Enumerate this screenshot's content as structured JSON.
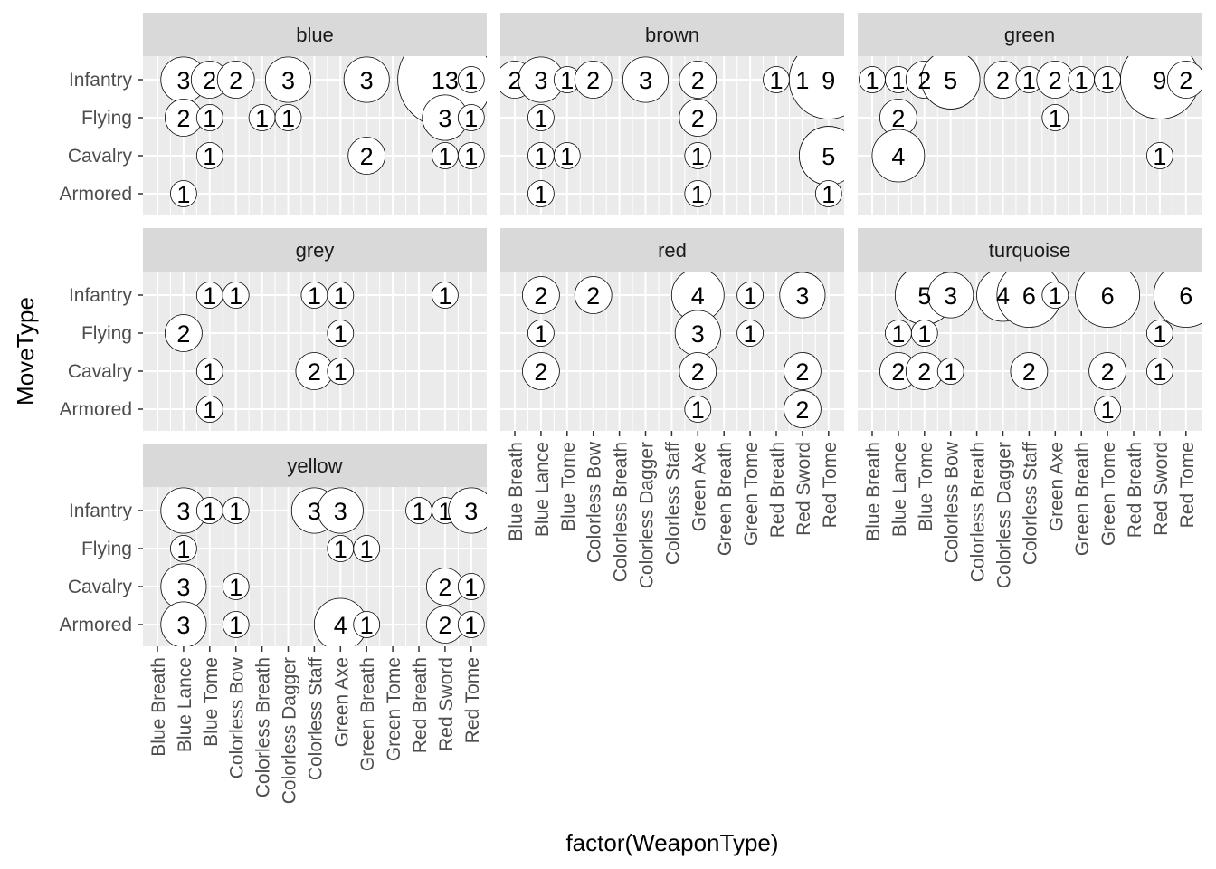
{
  "chart_data": {
    "type": "scatter",
    "subtype": "faceted-bubble",
    "xlabel": "factor(WeaponType)",
    "ylabel": "MoveType",
    "categories": [
      "Blue Breath",
      "Blue Lance",
      "Blue Tome",
      "Colorless Bow",
      "Colorless Breath",
      "Colorless Dagger",
      "Colorless Staff",
      "Green Axe",
      "Green Breath",
      "Green Tome",
      "Red Breath",
      "Red Sword",
      "Red Tome"
    ],
    "y_categories": [
      "Infantry",
      "Flying",
      "Cavalry",
      "Armored"
    ],
    "legend": "none",
    "grid": true,
    "facets": [
      {
        "name": "blue",
        "points": [
          {
            "x": "Blue Lance",
            "y": "Infantry",
            "value": 3,
            "label": "3"
          },
          {
            "x": "Blue Tome",
            "y": "Infantry",
            "value": 2,
            "label": "2"
          },
          {
            "x": "Colorless Bow",
            "y": "Infantry",
            "value": 2,
            "label": "2"
          },
          {
            "x": "Colorless Dagger",
            "y": "Infantry",
            "value": 3,
            "label": "3"
          },
          {
            "x": "Green Breath",
            "y": "Infantry",
            "value": 3,
            "label": "3"
          },
          {
            "x": "Red Sword",
            "y": "Infantry",
            "value": 13,
            "label": "13"
          },
          {
            "x": "Red Tome",
            "y": "Infantry",
            "value": 1,
            "label": "1"
          },
          {
            "x": "Blue Lance",
            "y": "Flying",
            "value": 2,
            "label": "2"
          },
          {
            "x": "Blue Tome",
            "y": "Flying",
            "value": 1,
            "label": "1"
          },
          {
            "x": "Colorless Breath",
            "y": "Flying",
            "value": 1,
            "label": "1"
          },
          {
            "x": "Colorless Dagger",
            "y": "Flying",
            "value": 1,
            "label": "1"
          },
          {
            "x": "Red Sword",
            "y": "Flying",
            "value": 3,
            "label": "3"
          },
          {
            "x": "Red Tome",
            "y": "Flying",
            "value": 1,
            "label": "1"
          },
          {
            "x": "Blue Tome",
            "y": "Cavalry",
            "value": 1,
            "label": "1"
          },
          {
            "x": "Green Breath",
            "y": "Cavalry",
            "value": 2,
            "label": "2"
          },
          {
            "x": "Red Sword",
            "y": "Cavalry",
            "value": 1,
            "label": "1"
          },
          {
            "x": "Red Tome",
            "y": "Cavalry",
            "value": 1,
            "label": "1"
          },
          {
            "x": "Blue Lance",
            "y": "Armored",
            "value": 1,
            "label": "1"
          }
        ]
      },
      {
        "name": "brown",
        "points": [
          {
            "x": "Blue Breath",
            "y": "Infantry",
            "value": 2,
            "label": "2"
          },
          {
            "x": "Blue Lance",
            "y": "Infantry",
            "value": 3,
            "label": "3"
          },
          {
            "x": "Blue Tome",
            "y": "Infantry",
            "value": 1,
            "label": "1"
          },
          {
            "x": "Colorless Bow",
            "y": "Infantry",
            "value": 2,
            "label": "2"
          },
          {
            "x": "Colorless Dagger",
            "y": "Infantry",
            "value": 3,
            "label": "3"
          },
          {
            "x": "Green Axe",
            "y": "Infantry",
            "value": 2,
            "label": "2"
          },
          {
            "x": "Red Breath",
            "y": "Infantry",
            "value": 1,
            "label": "1"
          },
          {
            "x": "Red Sword",
            "y": "Infantry",
            "value": 1,
            "label": "1"
          },
          {
            "x": "Red Tome",
            "y": "Infantry",
            "value": 9,
            "label": "9"
          },
          {
            "x": "Blue Lance",
            "y": "Flying",
            "value": 1,
            "label": "1"
          },
          {
            "x": "Green Axe",
            "y": "Flying",
            "value": 2,
            "label": "2"
          },
          {
            "x": "Blue Lance",
            "y": "Cavalry",
            "value": 1,
            "label": "1"
          },
          {
            "x": "Blue Tome",
            "y": "Cavalry",
            "value": 1,
            "label": "1"
          },
          {
            "x": "Green Axe",
            "y": "Cavalry",
            "value": 1,
            "label": "1"
          },
          {
            "x": "Red Tome",
            "y": "Cavalry",
            "value": 5,
            "label": "5"
          },
          {
            "x": "Blue Lance",
            "y": "Armored",
            "value": 1,
            "label": "1"
          },
          {
            "x": "Green Axe",
            "y": "Armored",
            "value": 1,
            "label": "1"
          },
          {
            "x": "Red Tome",
            "y": "Armored",
            "value": 1,
            "label": "1"
          }
        ]
      },
      {
        "name": "green",
        "points": [
          {
            "x": "Blue Breath",
            "y": "Infantry",
            "value": 1,
            "label": "1"
          },
          {
            "x": "Blue Lance",
            "y": "Infantry",
            "value": 1,
            "label": "1"
          },
          {
            "x": "Blue Tome",
            "y": "Infantry",
            "value": 2,
            "label": "2"
          },
          {
            "x": "Colorless Bow",
            "y": "Infantry",
            "value": 5,
            "label": "5"
          },
          {
            "x": "Colorless Dagger",
            "y": "Infantry",
            "value": 2,
            "label": "2"
          },
          {
            "x": "Colorless Staff",
            "y": "Infantry",
            "value": 1,
            "label": "1"
          },
          {
            "x": "Green Axe",
            "y": "Infantry",
            "value": 2,
            "label": "2"
          },
          {
            "x": "Green Breath",
            "y": "Infantry",
            "value": 1,
            "label": "1"
          },
          {
            "x": "Green Tome",
            "y": "Infantry",
            "value": 1,
            "label": "1"
          },
          {
            "x": "Red Sword",
            "y": "Infantry",
            "value": 9,
            "label": "9"
          },
          {
            "x": "Red Tome",
            "y": "Infantry",
            "value": 2,
            "label": "2"
          },
          {
            "x": "Blue Lance",
            "y": "Flying",
            "value": 2,
            "label": "2"
          },
          {
            "x": "Green Axe",
            "y": "Flying",
            "value": 1,
            "label": "1"
          },
          {
            "x": "Blue Lance",
            "y": "Cavalry",
            "value": 4,
            "label": "4"
          },
          {
            "x": "Red Sword",
            "y": "Cavalry",
            "value": 1,
            "label": "1"
          }
        ]
      },
      {
        "name": "grey",
        "points": [
          {
            "x": "Blue Tome",
            "y": "Infantry",
            "value": 1,
            "label": "1"
          },
          {
            "x": "Colorless Bow",
            "y": "Infantry",
            "value": 1,
            "label": "1"
          },
          {
            "x": "Colorless Staff",
            "y": "Infantry",
            "value": 1,
            "label": "1"
          },
          {
            "x": "Green Axe",
            "y": "Infantry",
            "value": 1,
            "label": "1"
          },
          {
            "x": "Red Sword",
            "y": "Infantry",
            "value": 1,
            "label": "1"
          },
          {
            "x": "Blue Lance",
            "y": "Flying",
            "value": 2,
            "label": "2"
          },
          {
            "x": "Green Axe",
            "y": "Flying",
            "value": 1,
            "label": "1"
          },
          {
            "x": "Blue Tome",
            "y": "Cavalry",
            "value": 1,
            "label": "1"
          },
          {
            "x": "Colorless Staff",
            "y": "Cavalry",
            "value": 2,
            "label": "2"
          },
          {
            "x": "Green Axe",
            "y": "Cavalry",
            "value": 1,
            "label": "1"
          },
          {
            "x": "Blue Tome",
            "y": "Armored",
            "value": 1,
            "label": "1"
          }
        ]
      },
      {
        "name": "red",
        "points": [
          {
            "x": "Blue Lance",
            "y": "Infantry",
            "value": 2,
            "label": "2"
          },
          {
            "x": "Colorless Bow",
            "y": "Infantry",
            "value": 2,
            "label": "2"
          },
          {
            "x": "Green Axe",
            "y": "Infantry",
            "value": 4,
            "label": "4"
          },
          {
            "x": "Green Tome",
            "y": "Infantry",
            "value": 1,
            "label": "1"
          },
          {
            "x": "Red Sword",
            "y": "Infantry",
            "value": 3,
            "label": "3"
          },
          {
            "x": "Blue Lance",
            "y": "Flying",
            "value": 1,
            "label": "1"
          },
          {
            "x": "Green Axe",
            "y": "Flying",
            "value": 3,
            "label": "3"
          },
          {
            "x": "Green Tome",
            "y": "Flying",
            "value": 1,
            "label": "1"
          },
          {
            "x": "Blue Lance",
            "y": "Cavalry",
            "value": 2,
            "label": "2"
          },
          {
            "x": "Green Axe",
            "y": "Cavalry",
            "value": 2,
            "label": "2"
          },
          {
            "x": "Red Sword",
            "y": "Cavalry",
            "value": 2,
            "label": "2"
          },
          {
            "x": "Green Axe",
            "y": "Armored",
            "value": 1,
            "label": "1"
          },
          {
            "x": "Red Sword",
            "y": "Armored",
            "value": 2,
            "label": "2"
          }
        ]
      },
      {
        "name": "turquoise",
        "points": [
          {
            "x": "Blue Tome",
            "y": "Infantry",
            "value": 5,
            "label": "5"
          },
          {
            "x": "Colorless Bow",
            "y": "Infantry",
            "value": 3,
            "label": "3"
          },
          {
            "x": "Colorless Dagger",
            "y": "Infantry",
            "value": 4,
            "label": "4"
          },
          {
            "x": "Colorless Staff",
            "y": "Infantry",
            "value": 6,
            "label": "6"
          },
          {
            "x": "Green Axe",
            "y": "Infantry",
            "value": 1,
            "label": "1"
          },
          {
            "x": "Green Tome",
            "y": "Infantry",
            "value": 6,
            "label": "6"
          },
          {
            "x": "Red Tome",
            "y": "Infantry",
            "value": 6,
            "label": "6"
          },
          {
            "x": "Blue Lance",
            "y": "Flying",
            "value": 1,
            "label": "1"
          },
          {
            "x": "Blue Tome",
            "y": "Flying",
            "value": 1,
            "label": "1"
          },
          {
            "x": "Red Sword",
            "y": "Flying",
            "value": 1,
            "label": "1"
          },
          {
            "x": "Blue Lance",
            "y": "Cavalry",
            "value": 2,
            "label": "2"
          },
          {
            "x": "Blue Tome",
            "y": "Cavalry",
            "value": 2,
            "label": "2"
          },
          {
            "x": "Colorless Bow",
            "y": "Cavalry",
            "value": 1,
            "label": "1"
          },
          {
            "x": "Colorless Staff",
            "y": "Cavalry",
            "value": 2,
            "label": "2"
          },
          {
            "x": "Green Tome",
            "y": "Cavalry",
            "value": 2,
            "label": "2"
          },
          {
            "x": "Red Sword",
            "y": "Cavalry",
            "value": 1,
            "label": "1"
          },
          {
            "x": "Green Tome",
            "y": "Armored",
            "value": 1,
            "label": "1"
          }
        ]
      },
      {
        "name": "yellow",
        "points": [
          {
            "x": "Blue Lance",
            "y": "Infantry",
            "value": 3,
            "label": "3"
          },
          {
            "x": "Blue Tome",
            "y": "Infantry",
            "value": 1,
            "label": "1"
          },
          {
            "x": "Colorless Bow",
            "y": "Infantry",
            "value": 1,
            "label": "1"
          },
          {
            "x": "Colorless Staff",
            "y": "Infantry",
            "value": 3,
            "label": "3"
          },
          {
            "x": "Green Axe",
            "y": "Infantry",
            "value": 3,
            "label": "3"
          },
          {
            "x": "Red Breath",
            "y": "Infantry",
            "value": 1,
            "label": "1"
          },
          {
            "x": "Red Sword",
            "y": "Infantry",
            "value": 1,
            "label": "1"
          },
          {
            "x": "Red Tome",
            "y": "Infantry",
            "value": 3,
            "label": "3"
          },
          {
            "x": "Blue Lance",
            "y": "Flying",
            "value": 1,
            "label": "1"
          },
          {
            "x": "Green Axe",
            "y": "Flying",
            "value": 1,
            "label": "1"
          },
          {
            "x": "Green Breath",
            "y": "Flying",
            "value": 1,
            "label": "1"
          },
          {
            "x": "Blue Lance",
            "y": "Cavalry",
            "value": 3,
            "label": "3"
          },
          {
            "x": "Colorless Bow",
            "y": "Cavalry",
            "value": 1,
            "label": "1"
          },
          {
            "x": "Red Sword",
            "y": "Cavalry",
            "value": 2,
            "label": "2"
          },
          {
            "x": "Red Tome",
            "y": "Cavalry",
            "value": 1,
            "label": "1"
          },
          {
            "x": "Blue Lance",
            "y": "Armored",
            "value": 3,
            "label": "3"
          },
          {
            "x": "Colorless Bow",
            "y": "Armored",
            "value": 1,
            "label": "1"
          },
          {
            "x": "Green Axe",
            "y": "Armored",
            "value": 4,
            "label": "4"
          },
          {
            "x": "Green Breath",
            "y": "Armored",
            "value": 1,
            "label": "1"
          },
          {
            "x": "Red Sword",
            "y": "Armored",
            "value": 2,
            "label": "2"
          },
          {
            "x": "Red Tome",
            "y": "Armored",
            "value": 1,
            "label": "1"
          }
        ]
      }
    ]
  },
  "colors": {
    "panel_background": "#ebebeb",
    "strip_background": "#d9d9d9",
    "gridline": "#ffffff",
    "bubble_fill": "#ffffff",
    "bubble_stroke": "#000000",
    "axis_text": "#4d4d4d",
    "label_text": "#000000"
  }
}
